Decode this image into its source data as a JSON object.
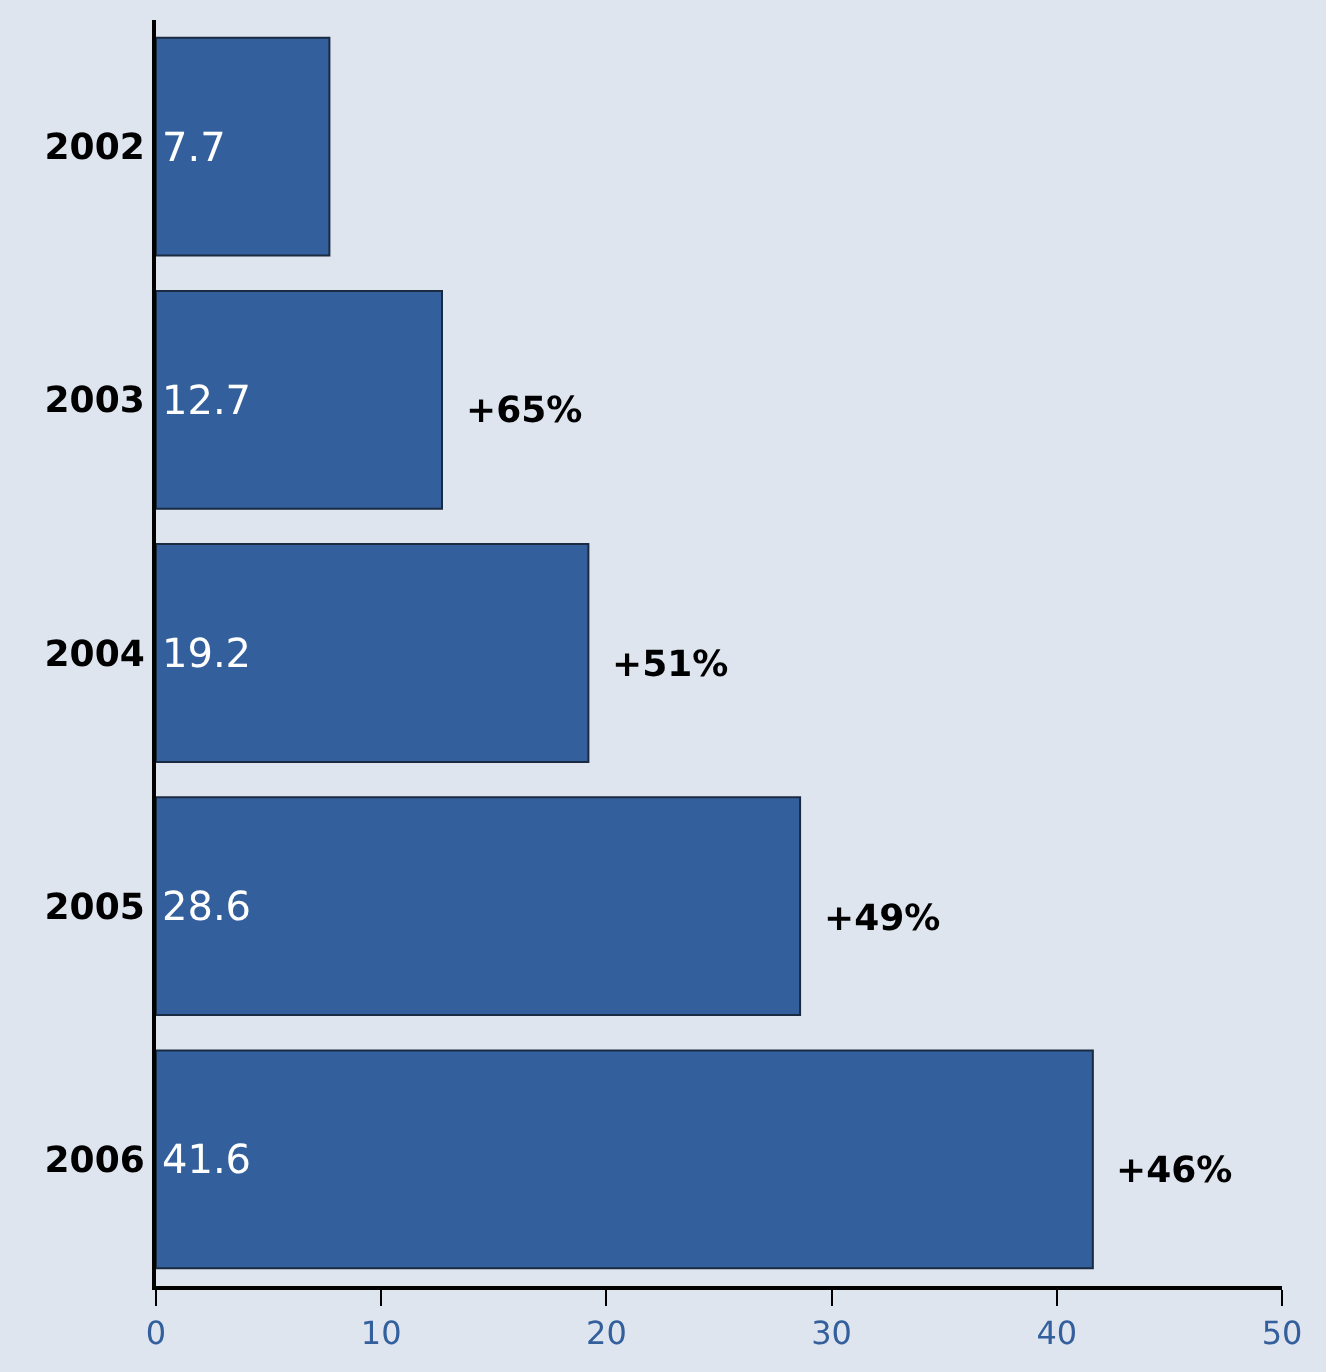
{
  "chart_data": {
    "type": "bar",
    "orientation": "horizontal",
    "categories": [
      "2002",
      "2003",
      "2004",
      "2005",
      "2006"
    ],
    "values": [
      7.7,
      12.7,
      19.2,
      28.6,
      41.6
    ],
    "color": "#33609c",
    "data_labels": true,
    "xlim": [
      0,
      50
    ],
    "xticks": [
      0,
      10,
      20,
      30,
      40,
      50
    ],
    "grid": false,
    "legend": false,
    "annotations": [
      {
        "text": "+65%",
        "x": 12.7,
        "y": "2003"
      },
      {
        "text": "+51%",
        "x": 19.2,
        "y": "2004"
      },
      {
        "text": "+49%",
        "x": 28.6,
        "y": "2005"
      },
      {
        "text": "+46%",
        "x": 41.6,
        "y": "2006"
      }
    ]
  }
}
